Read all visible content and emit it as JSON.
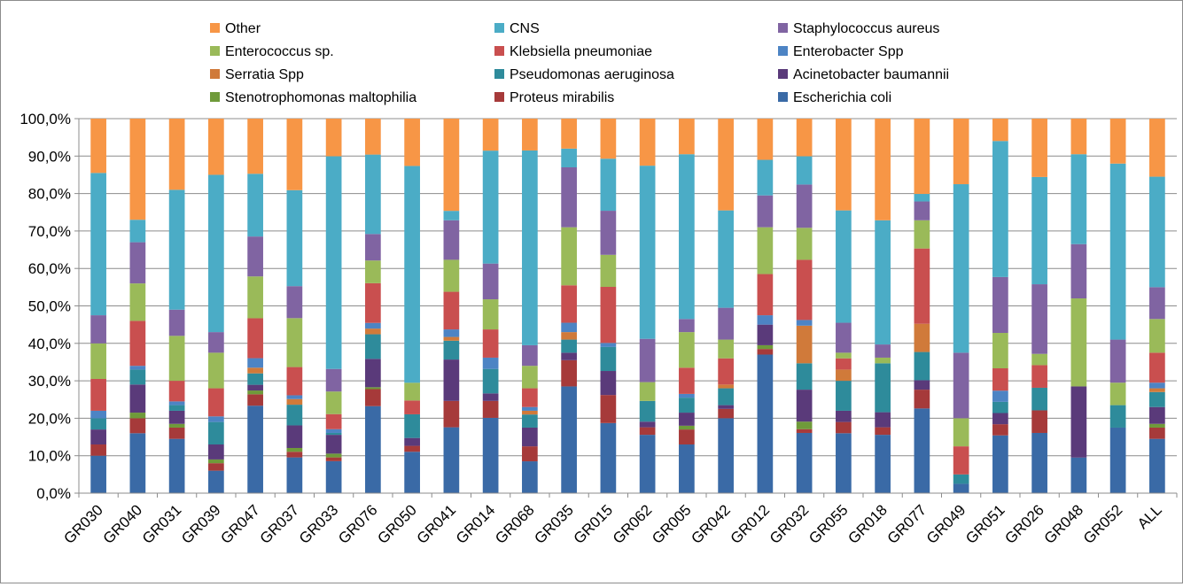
{
  "chart_data": {
    "type": "bar",
    "stacked": true,
    "title": "",
    "xlabel": "",
    "ylabel": "",
    "ylim": [
      0,
      100
    ],
    "ytick_labels": [
      "0,0%",
      "10,0%",
      "20,0%",
      "30,0%",
      "40,0%",
      "50,0%",
      "60,0%",
      "70,0%",
      "80,0%",
      "90,0%",
      "100,0%"
    ],
    "grid": true,
    "legend_position": "top",
    "categories": [
      "GR030",
      "GR040",
      "GR031",
      "GR039",
      "GR047",
      "GR037",
      "GR033",
      "GR076",
      "GR050",
      "GR041",
      "GR014",
      "GR068",
      "GR035",
      "GR015",
      "GR062",
      "GR005",
      "GR042",
      "GR012",
      "GR032",
      "GR055",
      "GR018",
      "GR077",
      "GR049",
      "GR051",
      "GR026",
      "GR048",
      "GR052",
      "ALL"
    ],
    "legend_order": [
      "Other",
      "CNS",
      "Staphylococcus aureus",
      "Enterococcus sp.",
      "Klebsiella pneumoniae",
      "Enterobacter Spp",
      "Serratia Spp",
      "Pseudomonas aeruginosa",
      "Acinetobacter baumannii",
      "Stenotrophomonas maltophilia",
      "Proteus mirabilis",
      "Escherichia coli"
    ],
    "series": [
      {
        "name": "Escherichia coli",
        "color": "#3a6aa6",
        "values": [
          10,
          16,
          14.5,
          6,
          23,
          9.5,
          8.5,
          23,
          10.5,
          17.5,
          20,
          8.5,
          28.5,
          17.5,
          15.5,
          13,
          20,
          37,
          16,
          16,
          15.5,
          22.5,
          2.5,
          15.5,
          16,
          9.5,
          17.5,
          14.5
        ]
      },
      {
        "name": "Proteus mirabilis",
        "color": "#a63a3a",
        "values": [
          3,
          4,
          3,
          2,
          3,
          1.5,
          1,
          4.5,
          1.5,
          7,
          4.5,
          4,
          7,
          7,
          2,
          4,
          2.5,
          1.5,
          1,
          3,
          2,
          5,
          0,
          3,
          6,
          0,
          0,
          3
        ]
      },
      {
        "name": "Stenotrophomonas maltophilia",
        "color": "#6f9a3a",
        "values": [
          0,
          1.5,
          1,
          1,
          1,
          1,
          1,
          0.5,
          0,
          0,
          0,
          0,
          0,
          0,
          0,
          1,
          0,
          1,
          2,
          0,
          0,
          0,
          0,
          0,
          0,
          0,
          0,
          1
        ]
      },
      {
        "name": "Acinetobacter baumannii",
        "color": "#5a3a7a",
        "values": [
          4,
          7.5,
          3.5,
          4,
          1.5,
          6,
          5,
          7.5,
          2,
          11,
          2,
          5,
          2,
          6,
          1.5,
          3.5,
          1,
          5.5,
          8.5,
          3,
          4,
          2.5,
          0,
          3,
          0,
          19,
          0,
          4.5
        ]
      },
      {
        "name": "Pseudomonas aeruginosa",
        "color": "#2e8b9b",
        "values": [
          3,
          4,
          1.5,
          6,
          3,
          5.5,
          0.5,
          6.5,
          6,
          5,
          6.5,
          3.5,
          3.5,
          6,
          5.5,
          4,
          4.5,
          0,
          7,
          8,
          13,
          7.5,
          2.5,
          3,
          6,
          0,
          6,
          4
        ]
      },
      {
        "name": "Serratia Spp",
        "color": "#d07a3a",
        "values": [
          0,
          0,
          0,
          0,
          1.5,
          1.5,
          0,
          1.5,
          0,
          1,
          0,
          1,
          2,
          0,
          0,
          0,
          1,
          0,
          10,
          3,
          0,
          7.5,
          0,
          0,
          0,
          0,
          0,
          1
        ]
      },
      {
        "name": "Enterobacter Spp",
        "color": "#4d84c4",
        "values": [
          2,
          1,
          1,
          1.5,
          2.5,
          1,
          1,
          1.5,
          0,
          2,
          3,
          1,
          2.5,
          1,
          0,
          1,
          0,
          2.5,
          1.5,
          0,
          0,
          0,
          0,
          3,
          0,
          0,
          0,
          1.5
        ]
      },
      {
        "name": "Klebsiella pneumoniae",
        "color": "#c94f4f",
        "values": [
          8.5,
          12,
          5.5,
          7.5,
          10.5,
          7.5,
          4,
          10.5,
          3.5,
          10,
          7.5,
          5,
          10,
          14,
          0,
          7,
          7,
          11,
          16,
          3,
          0,
          20,
          7.5,
          6,
          6,
          0,
          0,
          8
        ]
      },
      {
        "name": "Enterococcus sp.",
        "color": "#9aba59",
        "values": [
          9.5,
          10,
          12,
          9.5,
          11,
          13,
          6,
          6,
          4.5,
          8.5,
          8,
          6,
          15.5,
          8,
          5,
          9.5,
          5,
          12.5,
          8.5,
          1.5,
          1.5,
          7.5,
          7.5,
          9.5,
          3,
          23.5,
          6,
          9
        ]
      },
      {
        "name": "Staphylococcus aureus",
        "color": "#8064a2",
        "values": [
          7.5,
          11,
          7,
          5.5,
          10.5,
          8.5,
          6,
          7,
          0,
          10.5,
          9.5,
          5.5,
          16,
          11,
          11.5,
          3.5,
          8.5,
          8.5,
          11.5,
          8,
          3.5,
          5,
          17.5,
          15,
          18.5,
          14.5,
          11.5,
          8.5
        ]
      },
      {
        "name": "CNS",
        "color": "#4bacc6",
        "values": [
          38,
          6,
          32,
          42,
          16.5,
          25.5,
          56.5,
          21,
          55,
          2.5,
          30,
          52,
          5,
          13,
          46,
          44,
          26,
          9.5,
          7.5,
          30,
          33,
          2,
          45,
          36.5,
          28.5,
          24,
          47,
          29.5
        ]
      },
      {
        "name": "Other",
        "color": "#f79646",
        "values": [
          14.5,
          27,
          19,
          15,
          14.5,
          19,
          10,
          9.5,
          12,
          24.5,
          8.5,
          8.5,
          8,
          10,
          12.5,
          9.5,
          24.5,
          11,
          10,
          24.5,
          27,
          20,
          17.5,
          6,
          15.5,
          9.5,
          12,
          15.5
        ]
      }
    ]
  }
}
